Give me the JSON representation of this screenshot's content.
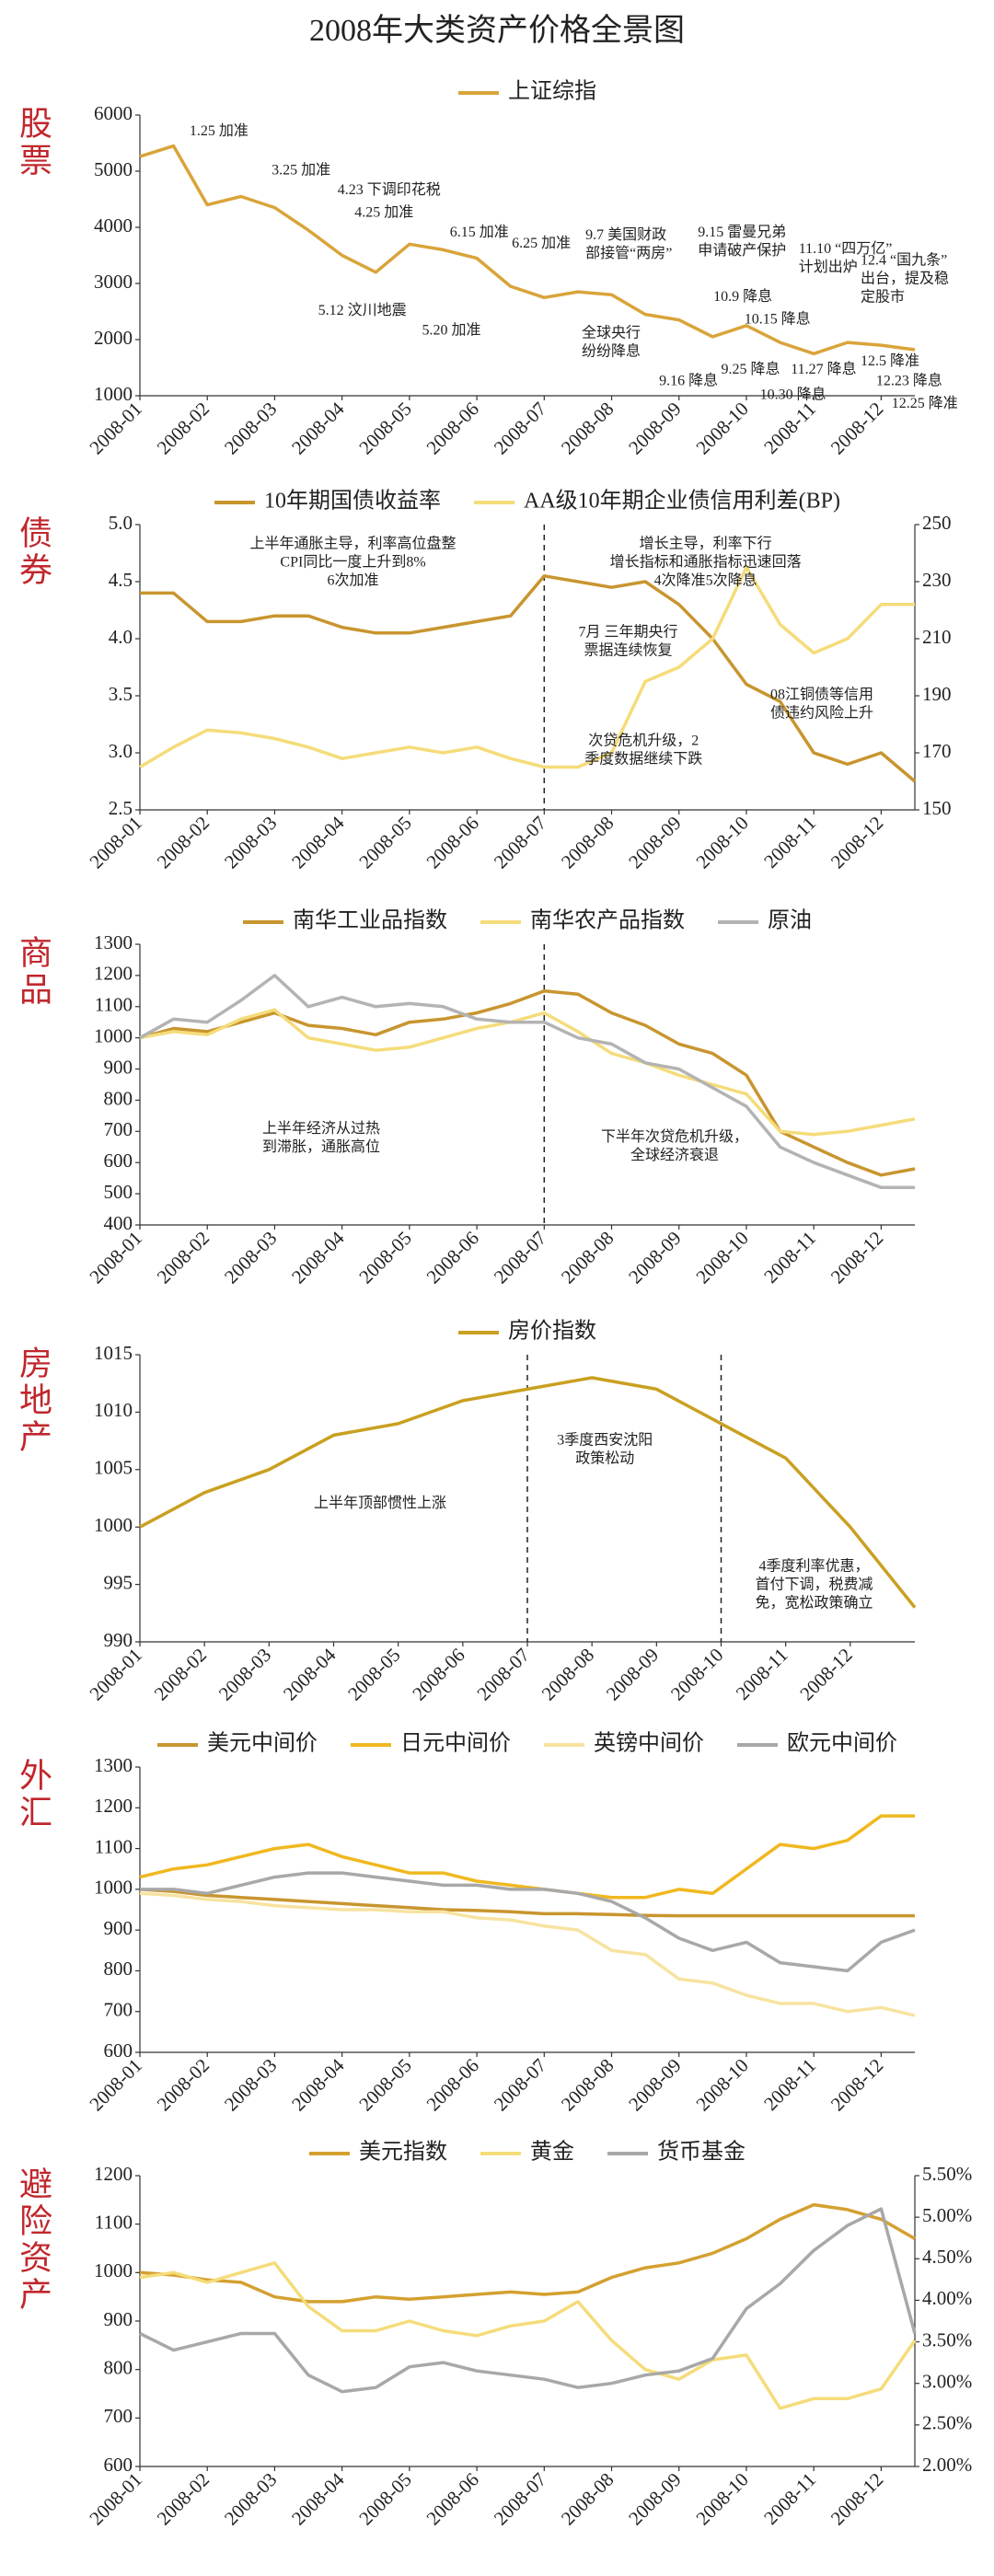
{
  "title": "2008年大类资产价格全景图",
  "chart_data": [
    {
      "type": "line",
      "label": "股票",
      "categories": [
        "2008-01",
        null,
        "2008-02",
        null,
        "2008-03",
        null,
        "2008-04",
        null,
        "2008-05",
        null,
        "2008-06",
        null,
        "2008-07",
        null,
        "2008-08",
        null,
        "2008-09",
        null,
        "2008-10",
        null,
        "2008-11",
        null,
        "2008-12",
        null
      ],
      "series": [
        {
          "name": "上证综指",
          "color": "#d9a43a",
          "values": [
            5260,
            5450,
            4400,
            4550,
            4350,
            3950,
            3500,
            3200,
            3700,
            3600,
            3450,
            2950,
            2750,
            2850,
            2800,
            2450,
            2350,
            2050,
            2250,
            1950,
            1750,
            1950,
            1900,
            1820
          ]
        }
      ],
      "ylim": [
        1000,
        6000
      ],
      "yticks": [
        1000,
        2000,
        3000,
        4000,
        5000,
        6000
      ],
      "annotations": [
        [
          "1.25 加准"
        ],
        [
          "3.25 加准"
        ],
        [
          "4.23 下调印花税"
        ],
        [
          "4.25 加准"
        ],
        [
          "5.12 汶川地震"
        ],
        [
          "5.20 加准"
        ],
        [
          "6.15 加准"
        ],
        [
          "6.25 加准"
        ],
        [
          "9.7 美国财政",
          "部接管“两房”"
        ],
        [
          "9.15 雷曼兄弟",
          "申请破产保护"
        ],
        [
          "10.9 降息"
        ],
        [
          "全球央行",
          "纷纷降息"
        ],
        [
          "9.16 降息"
        ],
        [
          "9.25 降息"
        ],
        [
          "10.15 降息"
        ],
        [
          "11.10 “四万亿”",
          "计划出炉"
        ],
        [
          "10.30 降息"
        ],
        [
          "11.27 降息"
        ],
        [
          "12.4 “国九条”",
          "出台，提及稳",
          "定股市"
        ],
        [
          "12.5 降准"
        ],
        [
          "12.23 降息"
        ],
        [
          "12.25 降准"
        ]
      ]
    },
    {
      "type": "line",
      "label": "债券",
      "categories": [
        "2008-01",
        null,
        "2008-02",
        null,
        "2008-03",
        null,
        "2008-04",
        null,
        "2008-05",
        null,
        "2008-06",
        null,
        "2008-07",
        null,
        "2008-08",
        null,
        "2008-09",
        null,
        "2008-10",
        null,
        "2008-11",
        null,
        "2008-12",
        null
      ],
      "series": [
        {
          "name": "10年期国债收益率",
          "color": "#c8952f",
          "values": [
            4.4,
            4.4,
            4.15,
            4.15,
            4.2,
            4.2,
            4.1,
            4.05,
            4.05,
            4.1,
            4.15,
            4.2,
            4.55,
            4.5,
            4.45,
            4.5,
            4.3,
            4.0,
            3.6,
            3.45,
            3.0,
            2.9,
            3.0,
            2.75
          ]
        },
        {
          "name": "AA级10年期企业债信用利差(BP)",
          "color": "#f5dc7a",
          "axis": "y2",
          "values": [
            165,
            172,
            178,
            177,
            175,
            172,
            168,
            170,
            172,
            170,
            172,
            168,
            165,
            165,
            170,
            195,
            200,
            210,
            235,
            215,
            205,
            210,
            222,
            222
          ]
        }
      ],
      "ylim": [
        2.5,
        5.0
      ],
      "yticks": [
        2.5,
        {
          "value": 3,
          "label": "3.0"
        },
        3.5,
        {
          "value": 4,
          "label": "4.0"
        },
        4.5,
        {
          "value": 5,
          "label": "5.0"
        }
      ],
      "y2lim": [
        150,
        250
      ],
      "y2ticks": [
        150,
        170,
        190,
        210,
        230,
        250
      ],
      "annotations": [
        [
          "上半年通胀主导，利率高位盘整",
          "CPI同比一度上升到8%",
          "6次加准"
        ],
        [
          "增长主导，利率下行",
          "增长指标和通胀指标迅速回落",
          "4次降准5次降息"
        ],
        [
          "7月 三年期央行",
          "票据连续恢复"
        ],
        [
          "次贷危机升级，2",
          "季度数据继续下跌"
        ],
        [
          "08江铜债等信用",
          "债违约风险上升"
        ]
      ]
    },
    {
      "type": "line",
      "label": "商品",
      "categories": [
        "2008-01",
        null,
        "2008-02",
        null,
        "2008-03",
        null,
        "2008-04",
        null,
        "2008-05",
        null,
        "2008-06",
        null,
        "2008-07",
        null,
        "2008-08",
        null,
        "2008-09",
        null,
        "2008-10",
        null,
        "2008-11",
        null,
        "2008-12",
        null
      ],
      "series": [
        {
          "name": "南华工业品指数",
          "color": "#c8952f",
          "values": [
            1000,
            1030,
            1020,
            1050,
            1080,
            1040,
            1030,
            1010,
            1050,
            1060,
            1080,
            1110,
            1150,
            1140,
            1080,
            1040,
            980,
            950,
            880,
            700,
            650,
            600,
            560,
            580
          ]
        },
        {
          "name": "南华农产品指数",
          "color": "#f5dc7a",
          "values": [
            1000,
            1020,
            1010,
            1060,
            1090,
            1000,
            980,
            960,
            970,
            1000,
            1030,
            1050,
            1080,
            1020,
            950,
            920,
            880,
            850,
            820,
            700,
            690,
            700,
            720,
            740
          ]
        },
        {
          "name": "原油",
          "color": "#b3b3b3",
          "values": [
            1000,
            1060,
            1050,
            1120,
            1200,
            1100,
            1130,
            1100,
            1110,
            1100,
            1060,
            1050,
            1050,
            1000,
            980,
            920,
            900,
            840,
            780,
            650,
            600,
            560,
            520,
            520
          ]
        }
      ],
      "ylim": [
        400,
        1300
      ],
      "yticks": [
        400,
        500,
        600,
        700,
        800,
        900,
        1000,
        1100,
        1200,
        1300
      ],
      "annotations": [
        [
          "上半年经济从过热",
          "到滞胀，通胀高位"
        ],
        [
          "下半年次贷危机升级，",
          "全球经济衰退"
        ]
      ]
    },
    {
      "type": "line",
      "label": "房地产",
      "categories": [
        "2008-01",
        "2008-02",
        "2008-03",
        "2008-04",
        "2008-05",
        "2008-06",
        "2008-07",
        "2008-08",
        "2008-09",
        "2008-10",
        "2008-11",
        "2008-12",
        null
      ],
      "series": [
        {
          "name": "房价指数",
          "color": "#c9a020",
          "values": [
            1000,
            1003,
            1005,
            1008,
            1009,
            1011,
            1012,
            1013,
            1012,
            1009,
            1006,
            1000,
            993
          ]
        }
      ],
      "ylim": [
        990,
        1015
      ],
      "yticks": [
        990,
        995,
        1000,
        1005,
        1010,
        1015
      ],
      "annotations": [
        [
          "上半年顶部惯性上涨"
        ],
        [
          "3季度西安沈阳",
          "政策松动"
        ],
        [
          "4季度利率优惠，",
          "首付下调，税费减",
          "免，宽松政策确立"
        ]
      ]
    },
    {
      "type": "line",
      "label": "外汇",
      "categories": [
        "2008-01",
        null,
        "2008-02",
        null,
        "2008-03",
        null,
        "2008-04",
        null,
        "2008-05",
        null,
        "2008-06",
        null,
        "2008-07",
        null,
        "2008-08",
        null,
        "2008-09",
        null,
        "2008-10",
        null,
        "2008-11",
        null,
        "2008-12",
        null
      ],
      "series": [
        {
          "name": "美元中间价",
          "color": "#c8952f",
          "values": [
            1000,
            995,
            985,
            980,
            975,
            970,
            965,
            960,
            955,
            950,
            948,
            945,
            940,
            940,
            938,
            936,
            935,
            935,
            935,
            935,
            935,
            935,
            935,
            935
          ]
        },
        {
          "name": "日元中间价",
          "color": "#f0b820",
          "values": [
            1030,
            1050,
            1060,
            1080,
            1100,
            1110,
            1080,
            1060,
            1040,
            1040,
            1020,
            1010,
            1000,
            990,
            980,
            980,
            1000,
            990,
            1050,
            1110,
            1100,
            1120,
            1180,
            1180
          ]
        },
        {
          "name": "英镑中间价",
          "color": "#f7e3a0",
          "values": [
            990,
            985,
            975,
            970,
            960,
            955,
            950,
            950,
            945,
            945,
            930,
            925,
            910,
            900,
            850,
            840,
            780,
            770,
            740,
            720,
            720,
            700,
            710,
            690
          ]
        },
        {
          "name": "欧元中间价",
          "color": "#a8a8a8",
          "values": [
            1000,
            1000,
            990,
            1010,
            1030,
            1040,
            1040,
            1030,
            1020,
            1010,
            1010,
            1000,
            1000,
            990,
            970,
            930,
            880,
            850,
            870,
            820,
            810,
            800,
            870,
            900
          ]
        }
      ],
      "ylim": [
        600,
        1300
      ],
      "yticks": [
        600,
        700,
        800,
        900,
        1000,
        1100,
        1200,
        1300
      ]
    },
    {
      "type": "line",
      "label": "避险资产",
      "categories": [
        "2008-01",
        null,
        "2008-02",
        null,
        "2008-03",
        null,
        "2008-04",
        null,
        "2008-05",
        null,
        "2008-06",
        null,
        "2008-07",
        null,
        "2008-08",
        null,
        "2008-09",
        null,
        "2008-10",
        null,
        "2008-11",
        null,
        "2008-12",
        null
      ],
      "series": [
        {
          "name": "美元指数",
          "color": "#d4a030",
          "values": [
            1000,
            995,
            985,
            980,
            950,
            940,
            940,
            950,
            945,
            950,
            955,
            960,
            955,
            960,
            990,
            1010,
            1020,
            1040,
            1070,
            1110,
            1140,
            1130,
            1110,
            1070
          ]
        },
        {
          "name": "黄金",
          "color": "#f5dc7a",
          "values": [
            990,
            1000,
            980,
            1000,
            1020,
            930,
            880,
            880,
            900,
            880,
            870,
            890,
            900,
            940,
            860,
            800,
            780,
            820,
            830,
            720,
            740,
            740,
            760,
            860
          ]
        },
        {
          "name": "货币基金",
          "color": "#a8a8a8",
          "axis": "y2",
          "values": [
            3.6,
            3.4,
            3.5,
            3.6,
            3.6,
            3.1,
            2.9,
            2.95,
            3.2,
            3.25,
            3.15,
            3.1,
            3.05,
            2.95,
            3.0,
            3.1,
            3.15,
            3.3,
            3.9,
            4.2,
            4.6,
            4.9,
            5.1,
            3.6
          ]
        }
      ],
      "ylim": [
        600,
        1200
      ],
      "yticks": [
        600,
        700,
        800,
        900,
        1000,
        1100,
        1200
      ],
      "y2lim": [
        2,
        5.5
      ],
      "y2ticks": [
        {
          "value": 2,
          "label": "2.00%"
        },
        {
          "value": 2.5,
          "label": "2.50%"
        },
        {
          "value": 3,
          "label": "3.00%"
        },
        {
          "value": 3.5,
          "label": "3.50%"
        },
        {
          "value": 4,
          "label": "4.00%"
        },
        {
          "value": 4.5,
          "label": "4.50%"
        },
        {
          "value": 5,
          "label": "5.00%"
        },
        {
          "value": 5.5,
          "label": "5.50%"
        }
      ]
    }
  ]
}
